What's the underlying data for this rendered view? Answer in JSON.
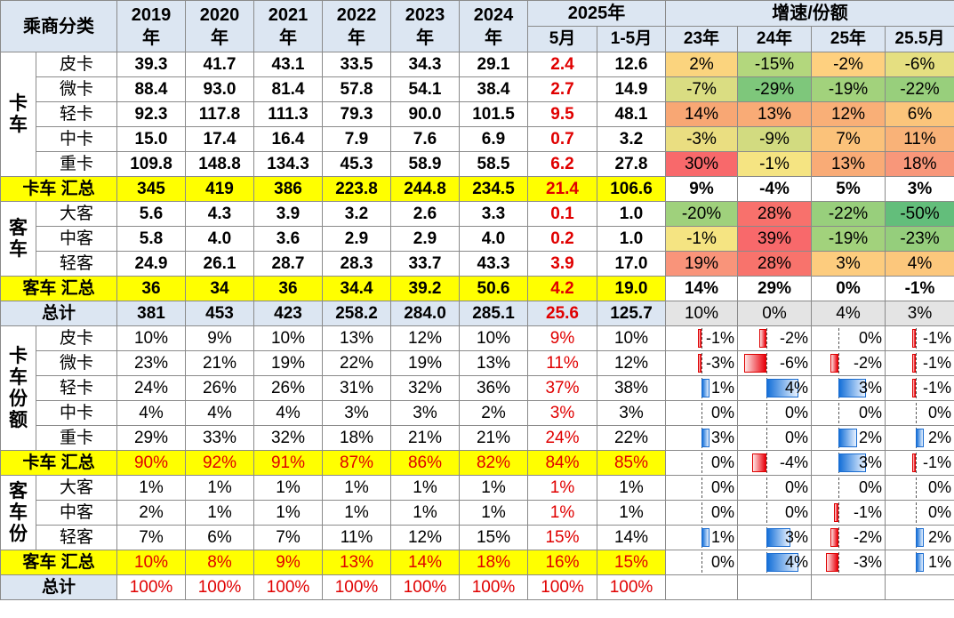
{
  "header": {
    "corner": "乘商分类",
    "years": [
      "2019\n年",
      "2020\n年",
      "2021\n年",
      "2022\n年",
      "2023\n年",
      "2024\n年"
    ],
    "y2025": "2025年",
    "m5": "5月",
    "m15": "1-5月",
    "growth": "增速/份额",
    "g_cols": [
      "23年",
      "24年",
      "25年",
      "25.5月"
    ]
  },
  "groups": {
    "truck": "卡\n车",
    "bus": "客\n车",
    "truck_share": "卡\n车\n份\n额",
    "bus_share": "客\n车\n份"
  },
  "volume_rows": [
    {
      "label": "皮卡",
      "v": [
        "39.3",
        "41.7",
        "43.1",
        "33.5",
        "34.3",
        "29.1"
      ],
      "m5": "2.4",
      "m15": "12.6",
      "g": [
        "2%",
        "-15%",
        "-2%",
        "-6%"
      ],
      "c": [
        "#fbd47e",
        "#b3d77d",
        "#fed07f",
        "#e5df81"
      ]
    },
    {
      "label": "微卡",
      "v": [
        "88.4",
        "93.0",
        "81.4",
        "57.8",
        "54.1",
        "38.4"
      ],
      "m5": "2.7",
      "m15": "14.9",
      "g": [
        "-7%",
        "-29%",
        "-19%",
        "-22%"
      ],
      "c": [
        "#dadd82",
        "#7ec77b",
        "#a2d27c",
        "#98cf7c"
      ]
    },
    {
      "label": "轻卡",
      "v": [
        "92.3",
        "117.8",
        "111.3",
        "79.3",
        "90.0",
        "101.5"
      ],
      "m5": "9.5",
      "m15": "48.1",
      "g": [
        "14%",
        "13%",
        "12%",
        "6%"
      ],
      "c": [
        "#f8a774",
        "#f9ab76",
        "#f9af77",
        "#fbc57b"
      ]
    },
    {
      "label": "中卡",
      "v": [
        "15.0",
        "17.4",
        "16.4",
        "7.9",
        "7.6",
        "6.9"
      ],
      "m5": "0.7",
      "m15": "3.2",
      "g": [
        "-3%",
        "-9%",
        "7%",
        "11%"
      ],
      "c": [
        "#eade81",
        "#d2db80",
        "#fbc27a",
        "#f9b278"
      ]
    },
    {
      "label": "重卡",
      "v": [
        "109.8",
        "148.8",
        "134.3",
        "45.3",
        "58.9",
        "58.5"
      ],
      "m5": "6.2",
      "m15": "27.8",
      "g": [
        "30%",
        "-1%",
        "13%",
        "18%"
      ],
      "c": [
        "#f8696b",
        "#f5e482",
        "#f9ab76",
        "#f8977a"
      ]
    }
  ],
  "truck_sum": {
    "label": "卡车 汇总",
    "v": [
      "345",
      "419",
      "386",
      "223.8",
      "244.8",
      "234.5"
    ],
    "m5": "21.4",
    "m15": "106.6",
    "g": [
      "9%",
      "-4%",
      "5%",
      "3%"
    ]
  },
  "bus_rows": [
    {
      "label": "大客",
      "v": [
        "5.6",
        "4.3",
        "3.9",
        "3.2",
        "2.6",
        "3.3"
      ],
      "m5": "0.1",
      "m15": "1.0",
      "g": [
        "-20%",
        "28%",
        "-22%",
        "-50%"
      ],
      "c": [
        "#9fd17c",
        "#f8716c",
        "#98cf7c",
        "#63be7b"
      ]
    },
    {
      "label": "中客",
      "v": [
        "5.8",
        "4.0",
        "3.6",
        "2.9",
        "2.9",
        "4.0"
      ],
      "m5": "0.2",
      "m15": "1.0",
      "g": [
        "-1%",
        "39%",
        "-19%",
        "-23%"
      ],
      "c": [
        "#f5e482",
        "#f8696b",
        "#a2d27c",
        "#95ce7c"
      ]
    },
    {
      "label": "轻客",
      "v": [
        "24.9",
        "26.1",
        "28.7",
        "28.3",
        "33.7",
        "43.3"
      ],
      "m5": "3.9",
      "m15": "17.0",
      "g": [
        "19%",
        "28%",
        "3%",
        "4%"
      ],
      "c": [
        "#f9947a",
        "#f8736c",
        "#fdcc7e",
        "#fcc77c"
      ]
    }
  ],
  "bus_sum": {
    "label": "客车 汇总",
    "v": [
      "36",
      "34",
      "36",
      "34.4",
      "39.2",
      "50.6"
    ],
    "m5": "4.2",
    "m15": "19.0",
    "g": [
      "14%",
      "29%",
      "0%",
      "-1%"
    ]
  },
  "total": {
    "label": "总计",
    "v": [
      "381",
      "453",
      "423",
      "258.2",
      "284.0",
      "285.1"
    ],
    "m5": "25.6",
    "m15": "125.7",
    "g": [
      "10%",
      "0%",
      "4%",
      "3%"
    ]
  },
  "share_rows": [
    {
      "label": "皮卡",
      "v": [
        "10%",
        "9%",
        "10%",
        "13%",
        "12%",
        "10%"
      ],
      "m5": "9%",
      "m15": "10%",
      "d": [
        -1,
        -2,
        0,
        -1
      ],
      "t": [
        "-1%",
        "-2%",
        "0%",
        "-1%"
      ]
    },
    {
      "label": "微卡",
      "v": [
        "23%",
        "21%",
        "19%",
        "22%",
        "19%",
        "13%"
      ],
      "m5": "11%",
      "m15": "12%",
      "d": [
        -3,
        -6,
        -2,
        -1
      ],
      "t": [
        "-3%",
        "-6%",
        "-2%",
        "-1%"
      ]
    },
    {
      "label": "轻卡",
      "v": [
        "24%",
        "26%",
        "26%",
        "31%",
        "32%",
        "36%"
      ],
      "m5": "37%",
      "m15": "38%",
      "d": [
        1,
        4,
        3,
        -1
      ],
      "t": [
        "1%",
        "4%",
        "3%",
        "-1%"
      ]
    },
    {
      "label": "中卡",
      "v": [
        "4%",
        "4%",
        "4%",
        "3%",
        "3%",
        "2%"
      ],
      "m5": "3%",
      "m15": "3%",
      "d": [
        0,
        0,
        0,
        0
      ],
      "t": [
        "0%",
        "0%",
        "0%",
        "0%"
      ]
    },
    {
      "label": "重卡",
      "v": [
        "29%",
        "33%",
        "32%",
        "18%",
        "21%",
        "21%"
      ],
      "m5": "24%",
      "m15": "22%",
      "d": [
        3,
        0,
        2,
        2
      ],
      "t": [
        "3%",
        "0%",
        "2%",
        "2%"
      ]
    }
  ],
  "truck_share_sum": {
    "label": "卡车 汇总",
    "v": [
      "90%",
      "92%",
      "91%",
      "87%",
      "86%",
      "82%"
    ],
    "m5": "84%",
    "m15": "85%",
    "d": [
      0,
      -4,
      3,
      -1
    ],
    "t": [
      "0%",
      "-4%",
      "3%",
      "-1%"
    ]
  },
  "bus_share_rows": [
    {
      "label": "大客",
      "v": [
        "1%",
        "1%",
        "1%",
        "1%",
        "1%",
        "1%"
      ],
      "m5": "1%",
      "m15": "1%",
      "d": [
        0,
        0,
        0,
        0
      ],
      "t": [
        "0%",
        "0%",
        "0%",
        "0%"
      ]
    },
    {
      "label": "中客",
      "v": [
        "2%",
        "1%",
        "1%",
        "1%",
        "1%",
        "1%"
      ],
      "m5": "1%",
      "m15": "1%",
      "d": [
        0,
        0,
        -1,
        0
      ],
      "t": [
        "0%",
        "0%",
        "-1%",
        "0%"
      ]
    },
    {
      "label": "轻客",
      "v": [
        "7%",
        "6%",
        "7%",
        "11%",
        "12%",
        "15%"
      ],
      "m5": "15%",
      "m15": "14%",
      "d": [
        1,
        3,
        -2,
        2
      ],
      "t": [
        "1%",
        "3%",
        "-2%",
        "2%"
      ]
    }
  ],
  "bus_share_sum": {
    "label": "客车 汇总",
    "v": [
      "10%",
      "8%",
      "9%",
      "13%",
      "14%",
      "18%"
    ],
    "m5": "16%",
    "m15": "15%",
    "d": [
      0,
      4,
      -3,
      1
    ],
    "t": [
      "0%",
      "4%",
      "-3%",
      "1%"
    ]
  },
  "share_total": {
    "label": "总计",
    "v": [
      "100%",
      "100%",
      "100%",
      "100%",
      "100%",
      "100%"
    ],
    "m5": "100%",
    "m15": "100%"
  },
  "chart_data": {
    "type": "table",
    "title": "",
    "columns": [
      "2019年",
      "2020年",
      "2021年",
      "2022年",
      "2023年",
      "2024年",
      "2025年 5月",
      "2025年 1-5月",
      "23年",
      "24年",
      "25年",
      "25.5月"
    ],
    "truck_volume": {
      "皮卡": [
        39.3,
        41.7,
        43.1,
        33.5,
        34.3,
        29.1,
        2.4,
        12.6
      ],
      "微卡": [
        88.4,
        93.0,
        81.4,
        57.8,
        54.1,
        38.4,
        2.7,
        14.9
      ],
      "轻卡": [
        92.3,
        117.8,
        111.3,
        79.3,
        90.0,
        101.5,
        9.5,
        48.1
      ],
      "中卡": [
        15.0,
        17.4,
        16.4,
        7.9,
        7.6,
        6.9,
        0.7,
        3.2
      ],
      "重卡": [
        109.8,
        148.8,
        134.3,
        45.3,
        58.9,
        58.5,
        6.2,
        27.8
      ]
    },
    "bus_volume": {
      "大客": [
        5.6,
        4.3,
        3.9,
        3.2,
        2.6,
        3.3,
        0.1,
        1.0
      ],
      "中客": [
        5.8,
        4.0,
        3.6,
        2.9,
        2.9,
        4.0,
        0.2,
        1.0
      ],
      "轻客": [
        24.9,
        26.1,
        28.7,
        28.3,
        33.7,
        43.3,
        3.9,
        17.0
      ]
    },
    "share_change_axis": [
      -6,
      6
    ]
  }
}
